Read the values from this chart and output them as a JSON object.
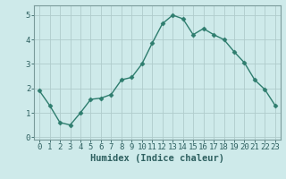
{
  "x": [
    0,
    1,
    2,
    3,
    4,
    5,
    6,
    7,
    8,
    9,
    10,
    11,
    12,
    13,
    14,
    15,
    16,
    17,
    18,
    19,
    20,
    21,
    22,
    23
  ],
  "y": [
    1.9,
    1.3,
    0.6,
    0.5,
    1.0,
    1.55,
    1.6,
    1.75,
    2.35,
    2.45,
    3.0,
    3.85,
    4.65,
    5.0,
    4.85,
    4.2,
    4.45,
    4.2,
    4.0,
    3.5,
    3.05,
    2.35,
    1.95,
    1.3
  ],
  "line_color": "#2e7d6e",
  "marker": "D",
  "markersize": 2.5,
  "linewidth": 1.0,
  "bg_color": "#ceeaea",
  "grid_color": "#b0cccc",
  "xlabel": "Humidex (Indice chaleur)",
  "xlim": [
    -0.5,
    23.5
  ],
  "ylim": [
    -0.1,
    5.4
  ],
  "yticks": [
    0,
    1,
    2,
    3,
    4,
    5
  ],
  "xtick_labels": [
    "0",
    "1",
    "2",
    "3",
    "4",
    "5",
    "6",
    "7",
    "8",
    "9",
    "10",
    "11",
    "12",
    "13",
    "14",
    "15",
    "16",
    "17",
    "18",
    "19",
    "20",
    "21",
    "22",
    "23"
  ],
  "xlabel_fontsize": 7.5,
  "tick_fontsize": 6.5,
  "spine_color": "#7a9a9a"
}
